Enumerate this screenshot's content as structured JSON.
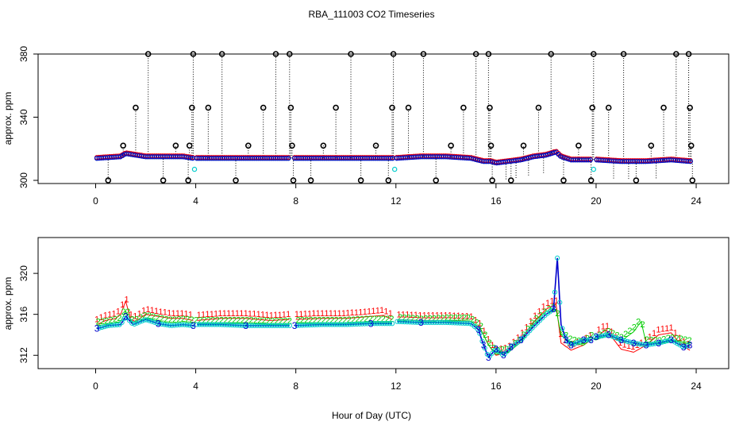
{
  "figure": {
    "title": "RBA_111003  CO2 Timeseries",
    "xlabel": "Hour of Day (UTC)"
  },
  "chart_data": [
    {
      "type": "scatter",
      "name": "top-panel",
      "xlabel": "",
      "ylabel": "approx. ppm",
      "xlim": [
        -2.3,
        25.3
      ],
      "ylim": [
        298,
        380
      ],
      "xticks": [
        0,
        4,
        8,
        12,
        16,
        20,
        24
      ],
      "xtick_labels": [
        "0",
        "4",
        "8",
        "12",
        "16",
        "20",
        "24"
      ],
      "yticks": [
        300,
        340,
        380
      ],
      "ytick_labels": [
        "300",
        "340",
        "380"
      ],
      "grid": false,
      "colors": {
        "baseline": "#0000cc",
        "fill1": "#ff0000",
        "fill2": "#00cc00",
        "fill3": "#00cccc",
        "outlier": "#000000"
      },
      "baseline": {
        "x": [
          0.05,
          1.0,
          1.2,
          2.0,
          2.5,
          3.5,
          3.9,
          4.0,
          5.0,
          6.0,
          7.0,
          7.7,
          7.95,
          9.0,
          10.0,
          11.0,
          11.85,
          12.0,
          13.0,
          14.0,
          15.0,
          15.5,
          15.8,
          16.0,
          16.5,
          17.0,
          17.5,
          18.0,
          18.4,
          18.6,
          19.0,
          19.5,
          19.8,
          20.0,
          21.0,
          22.0,
          23.0,
          23.75
        ],
        "values": [
          314,
          315,
          317,
          315,
          315,
          315,
          314,
          314,
          314,
          314,
          314,
          314,
          314,
          314,
          314,
          314,
          314,
          314,
          315,
          315,
          314,
          312,
          312,
          311,
          312,
          313,
          315,
          316,
          318,
          315,
          313,
          313,
          313,
          313,
          312,
          312,
          313,
          312
        ]
      },
      "gaps": [
        [
          3.92,
          4.0
        ],
        [
          7.78,
          7.95
        ],
        [
          11.87,
          12.02
        ],
        [
          19.83,
          19.95
        ]
      ],
      "outliers": {
        "x": [
          0.5,
          1.1,
          1.6,
          2.1,
          2.7,
          3.2,
          3.7,
          3.75,
          3.85,
          3.9,
          4.5,
          5.05,
          5.6,
          6.1,
          6.7,
          7.2,
          7.75,
          7.8,
          7.85,
          7.9,
          8.6,
          9.1,
          9.6,
          10.2,
          10.6,
          11.2,
          11.7,
          11.85,
          11.9,
          12.5,
          13.1,
          13.6,
          14.2,
          14.7,
          15.2,
          15.7,
          15.75,
          15.8,
          15.85,
          16.6,
          17.1,
          17.7,
          18.2,
          18.7,
          19.3,
          19.8,
          19.85,
          19.9,
          20.5,
          21.1,
          21.6,
          22.2,
          22.7,
          23.2,
          23.7,
          23.75,
          23.8,
          23.85
        ],
        "values": [
          300,
          322,
          346,
          380,
          300,
          322,
          300,
          322,
          346,
          380,
          346,
          380,
          300,
          322,
          346,
          380,
          380,
          346,
          322,
          300,
          300,
          322,
          346,
          380,
          300,
          322,
          300,
          346,
          380,
          346,
          380,
          300,
          322,
          346,
          380,
          380,
          346,
          322,
          300,
          300,
          322,
          346,
          380,
          300,
          322,
          300,
          346,
          380,
          346,
          380,
          300,
          322,
          346,
          380,
          380,
          346,
          322,
          300
        ]
      }
    },
    {
      "type": "line",
      "name": "bottom-panel",
      "xlabel": "Hour of Day (UTC)",
      "ylabel": "approx. ppm",
      "xlim": [
        -2.3,
        25.3
      ],
      "ylim": [
        310.7,
        323.5
      ],
      "xticks": [
        0,
        4,
        8,
        12,
        16,
        20,
        24
      ],
      "xtick_labels": [
        "0",
        "4",
        "8",
        "12",
        "16",
        "20",
        "24"
      ],
      "yticks": [
        312,
        316,
        320
      ],
      "ytick_labels": [
        "312",
        "316",
        "320"
      ],
      "grid": false,
      "gaps": [
        [
          3.92,
          4.0
        ],
        [
          7.78,
          7.95
        ],
        [
          11.87,
          12.02
        ],
        [
          19.83,
          19.95
        ]
      ],
      "series": [
        {
          "name": "1",
          "marker": "1",
          "color": "#ff0000",
          "x": [
            0.05,
            0.4,
            0.8,
            1.0,
            1.2,
            1.4,
            1.6,
            2.0,
            2.5,
            3.0,
            3.5,
            3.9,
            4.0,
            5.0,
            6.0,
            7.0,
            7.75,
            7.95,
            9.0,
            10.0,
            11.0,
            11.5,
            11.85,
            12.0,
            13.0,
            14.0,
            15.0,
            15.4,
            15.7,
            16.0,
            16.5,
            17.0,
            17.5,
            18.0,
            18.4,
            18.6,
            19.0,
            19.5,
            19.8,
            20.0,
            20.4,
            21.0,
            21.5,
            22.0,
            22.5,
            23.0,
            23.4,
            23.75
          ],
          "values": [
            315,
            315.4,
            315.6,
            316,
            317.3,
            315.5,
            315.3,
            316,
            315.8,
            315.6,
            315.6,
            315.4,
            315.4,
            315.6,
            315.6,
            315.4,
            315.5,
            315.5,
            315.6,
            315.6,
            315.8,
            315.9,
            315.5,
            315.5,
            315.4,
            315.4,
            315.3,
            314.5,
            313,
            312,
            312.3,
            313.5,
            315.2,
            316.5,
            317,
            313.2,
            312.5,
            313,
            313.5,
            313.8,
            314.5,
            312.6,
            312.3,
            313,
            314,
            314.2,
            313,
            312.5
          ]
        },
        {
          "name": "2",
          "marker": "2",
          "color": "#00cc00",
          "x": [
            0.05,
            0.5,
            1.0,
            1.2,
            1.5,
            2.0,
            2.5,
            3.0,
            3.5,
            3.9,
            4.0,
            5.0,
            6.0,
            7.0,
            7.75,
            7.95,
            9.0,
            10.0,
            11.0,
            11.85,
            12.0,
            13.0,
            14.0,
            15.0,
            15.4,
            15.7,
            16.0,
            16.5,
            17.0,
            17.5,
            18.0,
            18.4,
            18.6,
            19.0,
            19.5,
            19.8,
            20.0,
            20.5,
            21.0,
            21.5,
            21.8,
            22.0,
            22.5,
            23.0,
            23.5,
            23.75
          ],
          "values": [
            314.9,
            315,
            315.3,
            316.3,
            315,
            315.6,
            315.3,
            315.1,
            315.2,
            315.1,
            315.1,
            315.1,
            315.1,
            315,
            315,
            315.1,
            315.1,
            315.1,
            315.2,
            315.2,
            315.4,
            315.2,
            315.3,
            315.3,
            314.5,
            313,
            312.1,
            312.3,
            313.3,
            315,
            316,
            316.5,
            314,
            313.2,
            313,
            313.6,
            313.5,
            314,
            313.4,
            314.3,
            315.3,
            313.2,
            313.1,
            313.4,
            313.2,
            313.1
          ]
        },
        {
          "name": "3",
          "marker": "3",
          "color": "#0000cc",
          "x": [
            0.05,
            0.5,
            1.0,
            1.2,
            1.5,
            2.0,
            2.5,
            3.0,
            3.5,
            3.9,
            4.0,
            5.0,
            6.0,
            7.0,
            7.75,
            7.95,
            9.0,
            10.0,
            11.0,
            11.85,
            12.0,
            13.0,
            14.0,
            15.0,
            15.3,
            15.5,
            15.7,
            16.0,
            16.3,
            16.6,
            17.0,
            17.5,
            18.0,
            18.3,
            18.45,
            18.6,
            18.8,
            19.0,
            19.5,
            19.8,
            20.0,
            20.5,
            21.0,
            21.5,
            22.0,
            22.5,
            23.0,
            23.5,
            23.75
          ],
          "values": [
            314.6,
            314.9,
            315,
            315.8,
            315,
            315.5,
            315.1,
            314.9,
            315,
            314.9,
            315,
            315,
            314.9,
            314.9,
            314.9,
            314.9,
            315,
            315,
            315.1,
            315.1,
            315.3,
            315.2,
            315.2,
            315.1,
            314.5,
            313,
            311.8,
            312.6,
            312,
            312.8,
            313.5,
            314.8,
            316,
            316.5,
            321.5,
            315,
            313.5,
            313,
            313.5,
            313.5,
            313.8,
            314,
            313.5,
            313.2,
            313,
            313.2,
            313.5,
            312.8,
            313
          ]
        }
      ]
    }
  ]
}
